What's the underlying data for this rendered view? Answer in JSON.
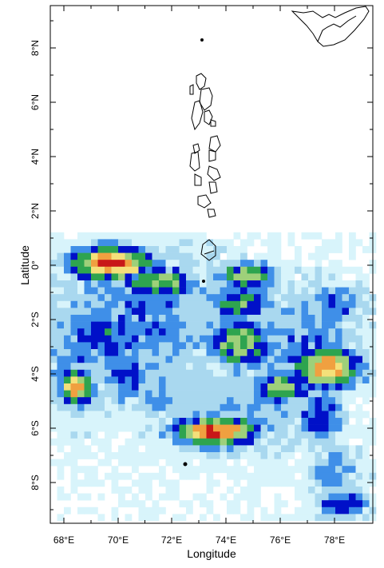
{
  "map": {
    "xlabel": "Longitude",
    "ylabel": "Latitude",
    "x_ticks": [
      "68°E",
      "70°E",
      "72°E",
      "74°E",
      "76°E",
      "78°E"
    ],
    "y_ticks": [
      "8°N",
      "6°N",
      "4°N",
      "2°N",
      "0°",
      "2°S",
      "4°S",
      "6°S",
      "8°S"
    ],
    "lon_range": [
      67.5,
      79.5
    ],
    "lat_range": [
      -9.5,
      9.5
    ],
    "palette": {
      "very_light": "#d8f4fb",
      "light": "#a9d8ef",
      "medium": "#3f8fe8",
      "dark": "#0010c8",
      "green": "#2ea44f",
      "light_green": "#9ed07a",
      "yellow": "#f4e07a",
      "orange": "#f0a040",
      "red": "#c81818"
    },
    "coastline_color": "#000000"
  }
}
